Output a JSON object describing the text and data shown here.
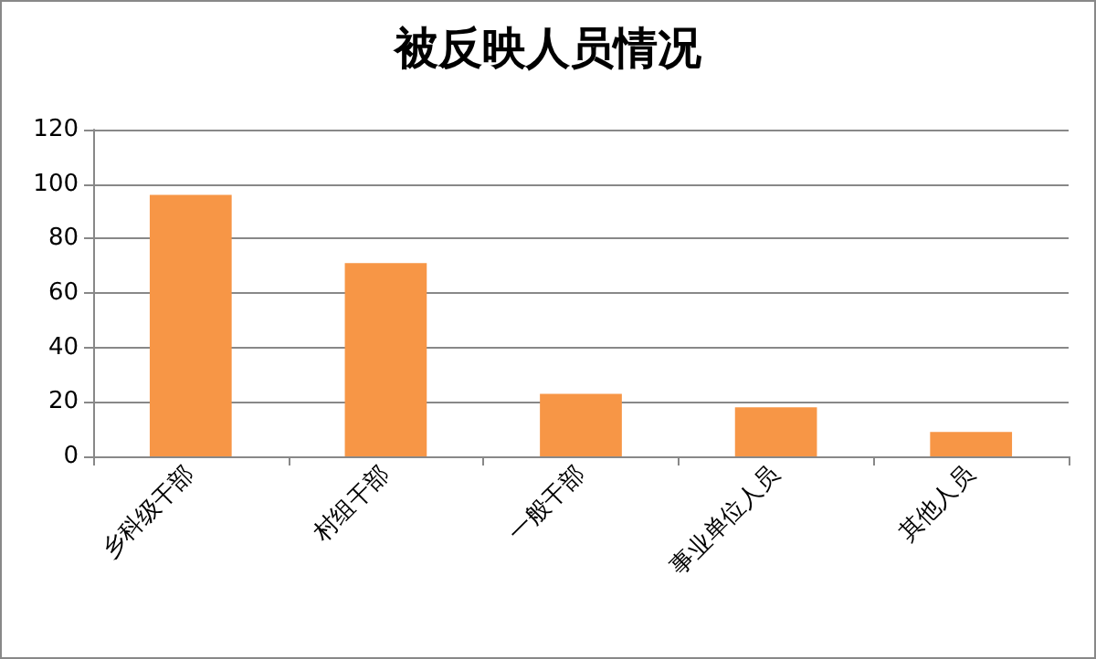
{
  "chart_data": {
    "type": "bar",
    "title": "被反映人员情况",
    "categories": [
      "乡科级干部",
      "村组干部",
      "一般干部",
      "事业单位人员",
      "其他人员"
    ],
    "values": [
      96,
      71,
      23,
      18,
      9
    ],
    "color": "#f79646",
    "ylim": [
      0,
      120
    ],
    "yticks": [
      0,
      20,
      40,
      60,
      80,
      100,
      120
    ],
    "grid": "y"
  }
}
